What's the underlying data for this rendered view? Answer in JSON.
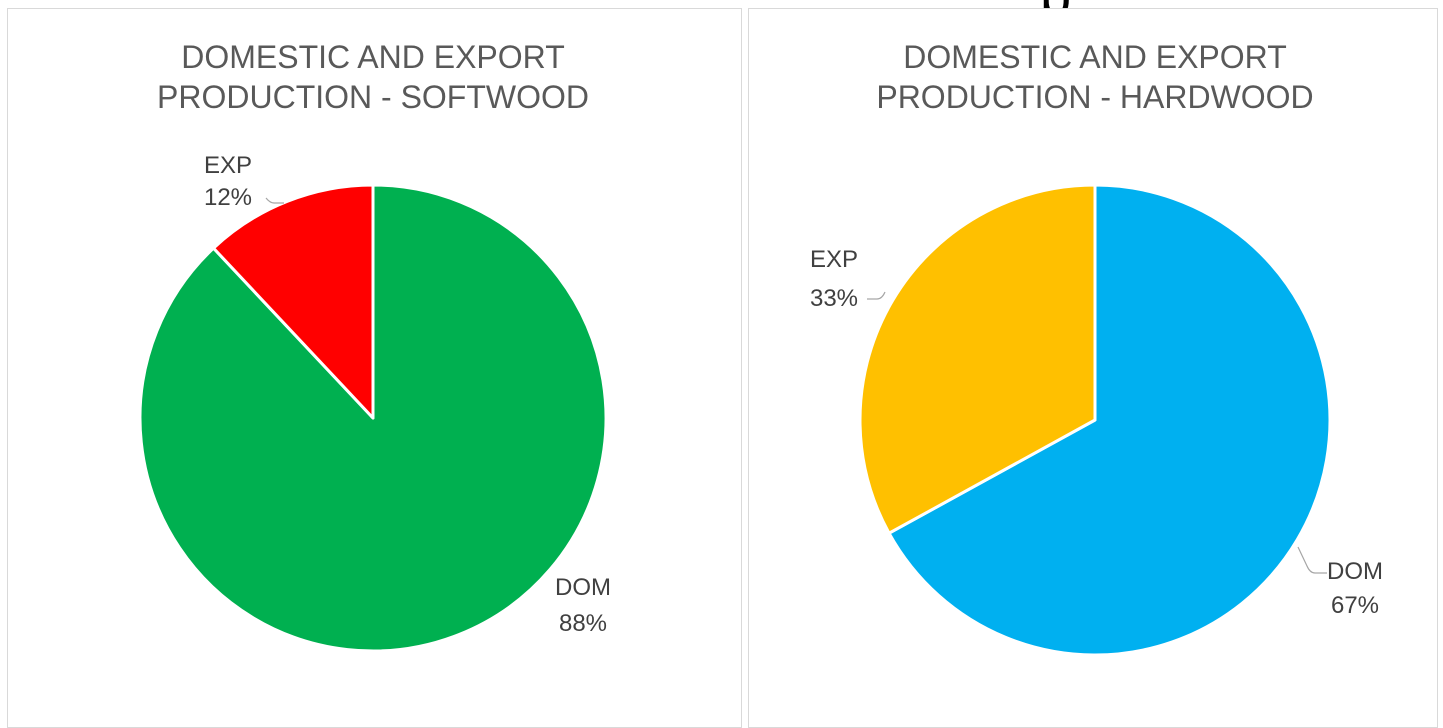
{
  "header": {
    "cut_off_text": "p"
  },
  "chart_data": [
    {
      "type": "pie",
      "title_lines": [
        "DOMESTIC AND EXPORT",
        "PRODUCTION - SOFTWOOD"
      ],
      "slices": [
        {
          "label": "DOM",
          "value": 88,
          "value_label": "88%",
          "color": "#00b050"
        },
        {
          "label": "EXP",
          "value": 12,
          "value_label": "12%",
          "color": "#ff0000"
        }
      ],
      "legend": "none",
      "start_angle": "12 o'clock, clockwise"
    },
    {
      "type": "pie",
      "title_lines": [
        "DOMESTIC AND EXPORT",
        "PRODUCTION - HARDWOOD"
      ],
      "slices": [
        {
          "label": "DOM",
          "value": 67,
          "value_label": "67%",
          "color": "#00b0f0"
        },
        {
          "label": "EXP",
          "value": 33,
          "value_label": "33%",
          "color": "#ffc000"
        }
      ],
      "legend": "none",
      "start_angle": "12 o'clock, clockwise"
    }
  ]
}
